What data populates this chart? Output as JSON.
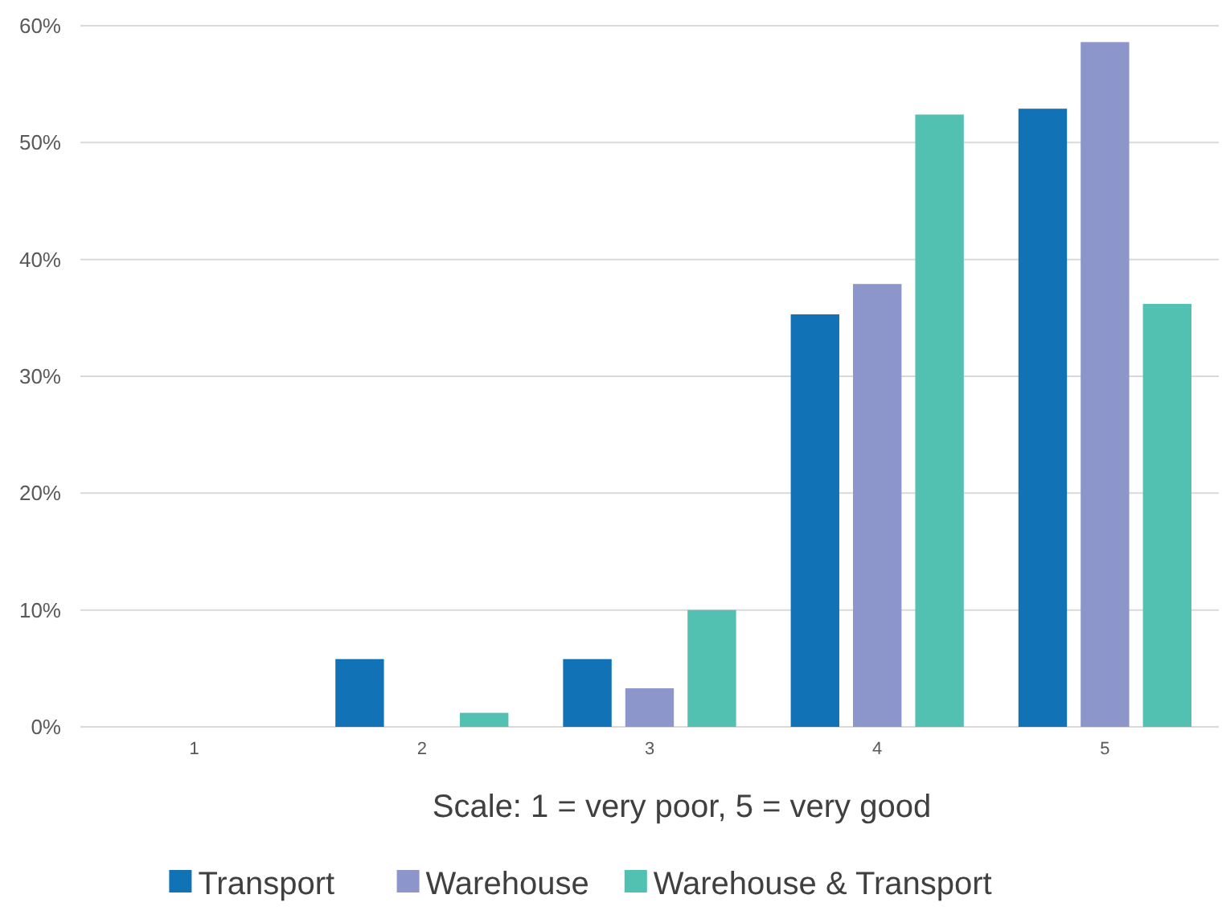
{
  "chart_data": {
    "type": "bar",
    "xlabel": "Scale: 1 = very poor, 5 = very good",
    "categories": [
      "1",
      "2",
      "3",
      "4",
      "5"
    ],
    "series": [
      {
        "name": "Transport",
        "color": "#1172b6",
        "values": [
          0,
          5.8,
          5.8,
          35.3,
          52.9
        ]
      },
      {
        "name": "Warehouse",
        "color": "#8c96cb",
        "values": [
          0,
          0,
          3.3,
          37.9,
          58.6
        ]
      },
      {
        "name": "Warehouse & Transport",
        "color": "#53c1b1",
        "values": [
          0,
          1.2,
          10.0,
          52.4,
          36.2
        ]
      }
    ],
    "ylim": [
      0,
      60
    ],
    "yticks": [
      {
        "value": 0,
        "label": "0%"
      },
      {
        "value": 10,
        "label": "10%"
      },
      {
        "value": 20,
        "label": "20%"
      },
      {
        "value": 30,
        "label": "30%"
      },
      {
        "value": 40,
        "label": "40%"
      },
      {
        "value": 50,
        "label": "50%"
      },
      {
        "value": 60,
        "label": "60%"
      }
    ],
    "grid": "y",
    "legend": "bottom"
  }
}
